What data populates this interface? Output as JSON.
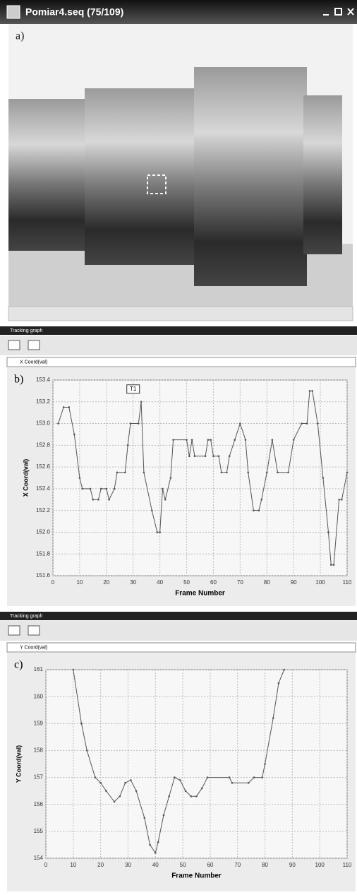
{
  "window": {
    "title": "Pomiar4.seq (75/109)",
    "label": "a)"
  },
  "panels": [
    {
      "title": "Tracking graph",
      "dropdown": "X Coord(val)",
      "label": "b)"
    },
    {
      "title": "Tracking graph",
      "dropdown": "Y Coord(val)",
      "label": "c)"
    }
  ],
  "chart_data": [
    {
      "type": "line",
      "xlabel": "Frame Number",
      "ylabel": "X Coord(val)",
      "color": "#555555",
      "grid": true,
      "x": [
        2,
        4,
        6,
        8,
        10,
        11,
        14,
        15,
        17,
        18,
        20,
        21,
        23,
        24,
        27,
        28,
        29,
        32,
        33,
        34,
        37,
        39,
        40,
        41,
        42,
        44,
        45,
        50,
        51,
        52,
        53,
        57,
        58,
        59,
        60,
        62,
        63,
        65,
        66,
        68,
        70,
        72,
        73,
        75,
        77,
        78,
        80,
        82,
        84,
        88,
        90,
        93,
        95,
        96,
        97,
        99,
        101,
        103,
        104,
        105,
        107,
        108,
        110
      ],
      "values": [
        153.0,
        153.15,
        153.15,
        152.9,
        152.5,
        152.4,
        152.4,
        152.3,
        152.3,
        152.4,
        152.4,
        152.3,
        152.4,
        152.55,
        152.55,
        152.8,
        153.0,
        153.0,
        153.2,
        152.55,
        152.2,
        152.0,
        152.0,
        152.4,
        152.3,
        152.5,
        152.85,
        152.85,
        152.7,
        152.85,
        152.7,
        152.7,
        152.85,
        152.85,
        152.7,
        152.7,
        152.55,
        152.55,
        152.7,
        152.85,
        153.0,
        152.85,
        152.55,
        152.2,
        152.2,
        152.3,
        152.55,
        152.85,
        152.55,
        152.55,
        152.85,
        153.0,
        153.0,
        153.3,
        153.3,
        153.0,
        152.5,
        152.0,
        151.7,
        151.7,
        152.3,
        152.3,
        152.55
      ],
      "xlim": [
        0,
        110
      ],
      "xticks": [
        0,
        10,
        20,
        30,
        40,
        50,
        60,
        70,
        80,
        90,
        100,
        110
      ],
      "ylim": [
        151.6,
        153.4
      ],
      "yticks": [
        151.6,
        151.8,
        {
          "value": 152,
          "label": "152.0"
        },
        152.2,
        152.4,
        152.6,
        152.8,
        {
          "value": 153,
          "label": "153.0"
        },
        153.2,
        153.4
      ],
      "annotation": {
        "text": "T1",
        "x": 30,
        "y": 153.2
      }
    },
    {
      "type": "line",
      "xlabel": "Frame Number",
      "ylabel": "Y Coord(val)",
      "color": "#555555",
      "grid": true,
      "x": [
        10,
        13,
        15,
        18,
        20,
        22,
        25,
        27,
        29,
        31,
        33,
        36,
        38,
        40,
        41,
        43,
        45,
        47,
        49,
        51,
        53,
        55,
        57,
        59,
        67,
        68,
        74,
        76,
        79,
        80,
        83,
        85,
        87
      ],
      "values": [
        161,
        159,
        158,
        157,
        156.8,
        156.5,
        156.1,
        156.3,
        156.8,
        156.9,
        156.5,
        155.5,
        154.5,
        154.2,
        154.6,
        155.6,
        156.3,
        157,
        156.9,
        156.5,
        156.3,
        156.3,
        156.6,
        157,
        157,
        156.8,
        156.8,
        157,
        157,
        157.5,
        159.2,
        160.5,
        161
      ],
      "xlim": [
        0,
        110
      ],
      "xticks": [
        0,
        10,
        20,
        30,
        40,
        50,
        60,
        70,
        80,
        90,
        100,
        110
      ],
      "ylim": [
        154,
        161
      ],
      "yticks": [
        154,
        155,
        156,
        157,
        158,
        159,
        160,
        161
      ]
    }
  ]
}
